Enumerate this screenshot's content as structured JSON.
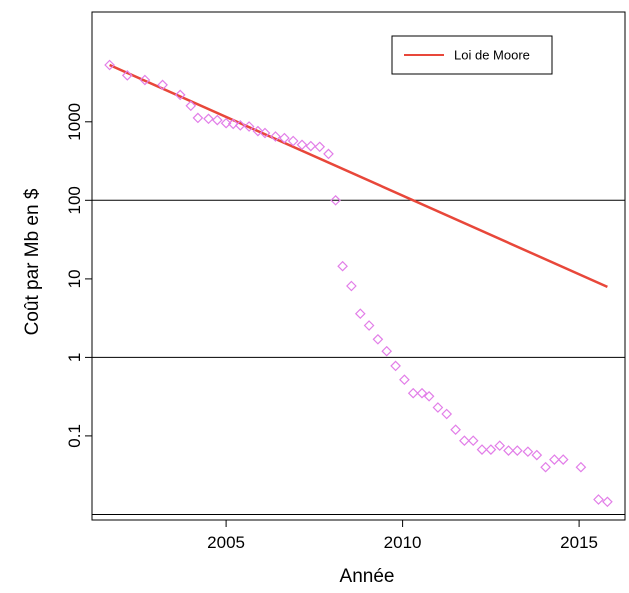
{
  "chart_data": {
    "type": "scatter",
    "title": "",
    "xlabel": "Année",
    "ylabel": "Coût par Mb en $",
    "x_scale": "linear",
    "y_scale": "log",
    "xlim": [
      2001.2,
      2016.3
    ],
    "ylim": [
      0.0085,
      25000
    ],
    "x_ticks": [
      2005,
      2010,
      2015
    ],
    "x_tick_labels": [
      "2005",
      "2010",
      "2015"
    ],
    "y_ticks": [
      0.1,
      1,
      10,
      100,
      1000
    ],
    "y_tick_labels": [
      "0.1",
      "1",
      "10",
      "100",
      "1000"
    ],
    "hlines": [
      0.01,
      1,
      100
    ],
    "legend_position": "top-right",
    "series": [
      {
        "name": "",
        "type": "scatter",
        "marker": "diamond",
        "color": "#e27ee8",
        "points": [
          [
            2001.7,
            5290
          ],
          [
            2002.2,
            3900
          ],
          [
            2002.7,
            3400
          ],
          [
            2003.2,
            2950
          ],
          [
            2003.7,
            2200
          ],
          [
            2004.0,
            1600
          ],
          [
            2004.2,
            1120
          ],
          [
            2004.5,
            1090
          ],
          [
            2004.75,
            1050
          ],
          [
            2005.0,
            960
          ],
          [
            2005.2,
            940
          ],
          [
            2005.4,
            900
          ],
          [
            2005.65,
            870
          ],
          [
            2005.9,
            760
          ],
          [
            2006.1,
            720
          ],
          [
            2006.4,
            650
          ],
          [
            2006.65,
            620
          ],
          [
            2006.9,
            570
          ],
          [
            2007.15,
            510
          ],
          [
            2007.4,
            490
          ],
          [
            2007.65,
            480
          ],
          [
            2007.9,
            390
          ],
          [
            2008.1,
            100
          ],
          [
            2008.3,
            14.5
          ],
          [
            2008.55,
            8.1
          ],
          [
            2008.8,
            3.6
          ],
          [
            2009.05,
            2.55
          ],
          [
            2009.3,
            1.7
          ],
          [
            2009.55,
            1.2
          ],
          [
            2009.8,
            0.78
          ],
          [
            2010.05,
            0.52
          ],
          [
            2010.3,
            0.35
          ],
          [
            2010.55,
            0.35
          ],
          [
            2010.75,
            0.32
          ],
          [
            2011.0,
            0.23
          ],
          [
            2011.25,
            0.19
          ],
          [
            2011.5,
            0.12
          ],
          [
            2011.75,
            0.087
          ],
          [
            2012.0,
            0.087
          ],
          [
            2012.25,
            0.067
          ],
          [
            2012.5,
            0.067
          ],
          [
            2012.75,
            0.075
          ],
          [
            2013.0,
            0.065
          ],
          [
            2013.25,
            0.065
          ],
          [
            2013.55,
            0.063
          ],
          [
            2013.8,
            0.057
          ],
          [
            2014.05,
            0.04
          ],
          [
            2014.3,
            0.05
          ],
          [
            2014.55,
            0.05
          ],
          [
            2015.05,
            0.04
          ],
          [
            2015.55,
            0.0155
          ],
          [
            2015.8,
            0.0145
          ]
        ]
      },
      {
        "name": "Loi de Moore",
        "type": "line",
        "color": "#e8473a",
        "points": [
          [
            2001.7,
            5290
          ],
          [
            2015.8,
            7.9
          ]
        ]
      }
    ]
  }
}
